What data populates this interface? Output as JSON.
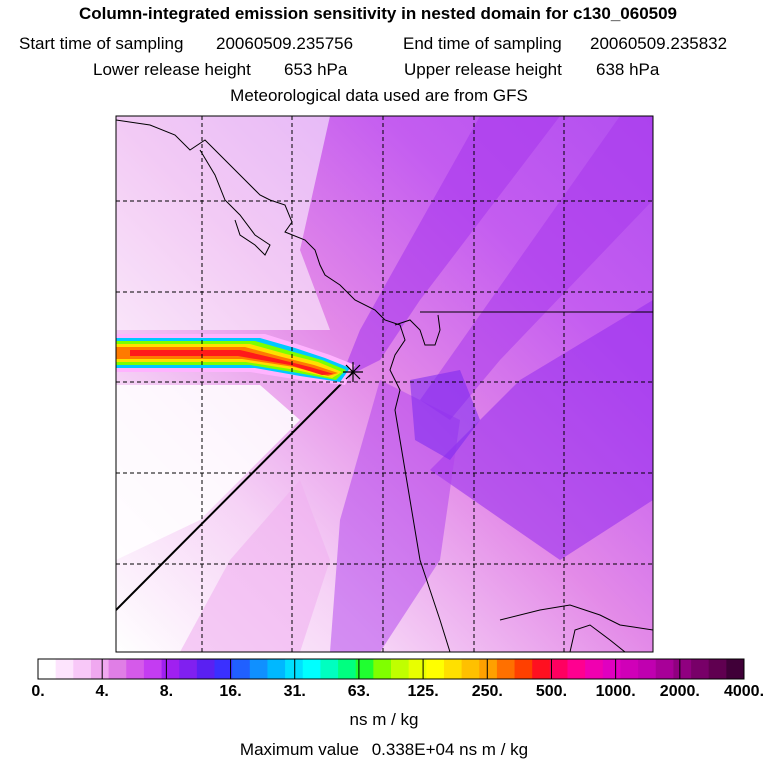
{
  "header": {
    "title": "Column-integrated emission sensitivity in nested domain for c130_060509",
    "start_label": "Start time of sampling",
    "start_value": "20060509.235756",
    "end_label": "End time of sampling",
    "end_value": "20060509.235832",
    "lower_label": "Lower release height",
    "lower_value": "653 hPa",
    "upper_label": "Upper release height",
    "upper_value": "638 hPa",
    "met_text": "Meteorological data used are from GFS"
  },
  "map": {
    "release_marker": "release-point-star",
    "plume_colors": [
      "#ffb3ff",
      "#00b4ff",
      "#00ffe0",
      "#7cff00",
      "#ffe000",
      "#ff7a00",
      "#ff1a1a"
    ],
    "background_colors": [
      "#ffffff",
      "#f8d9f8",
      "#f0b8f0",
      "#e58ce8",
      "#d260e6",
      "#b13cf0",
      "#9a3cf0"
    ]
  },
  "colorbar": {
    "colors": [
      "#ffffff",
      "#fde4fd",
      "#f8c8f8",
      "#f0a8f0",
      "#e07ee6",
      "#d55aea",
      "#c43cf2",
      "#a020f0",
      "#8020f0",
      "#5a20f2",
      "#3a30ff",
      "#2060ff",
      "#1090ff",
      "#00b8ff",
      "#00e0ff",
      "#00ffff",
      "#00ffc0",
      "#00ff80",
      "#20ff30",
      "#80ff00",
      "#c0ff00",
      "#e8ff00",
      "#ffff00",
      "#ffe000",
      "#ffc000",
      "#ffa000",
      "#ff7000",
      "#ff4000",
      "#ff1020",
      "#ff0060",
      "#ff0090",
      "#f000b0",
      "#e000c0",
      "#d000b8",
      "#c000b0",
      "#a80098",
      "#900080",
      "#780068",
      "#600050",
      "#400038"
    ],
    "ticks": [
      "0.",
      "4.",
      "8.",
      "16.",
      "31.",
      "63.",
      "125.",
      "250.",
      "500.",
      "1000.",
      "2000.",
      "4000."
    ],
    "units": "ns m / kg"
  },
  "footer": {
    "max_label": "Maximum value",
    "max_value": "0.338E+04 ns m / kg"
  }
}
